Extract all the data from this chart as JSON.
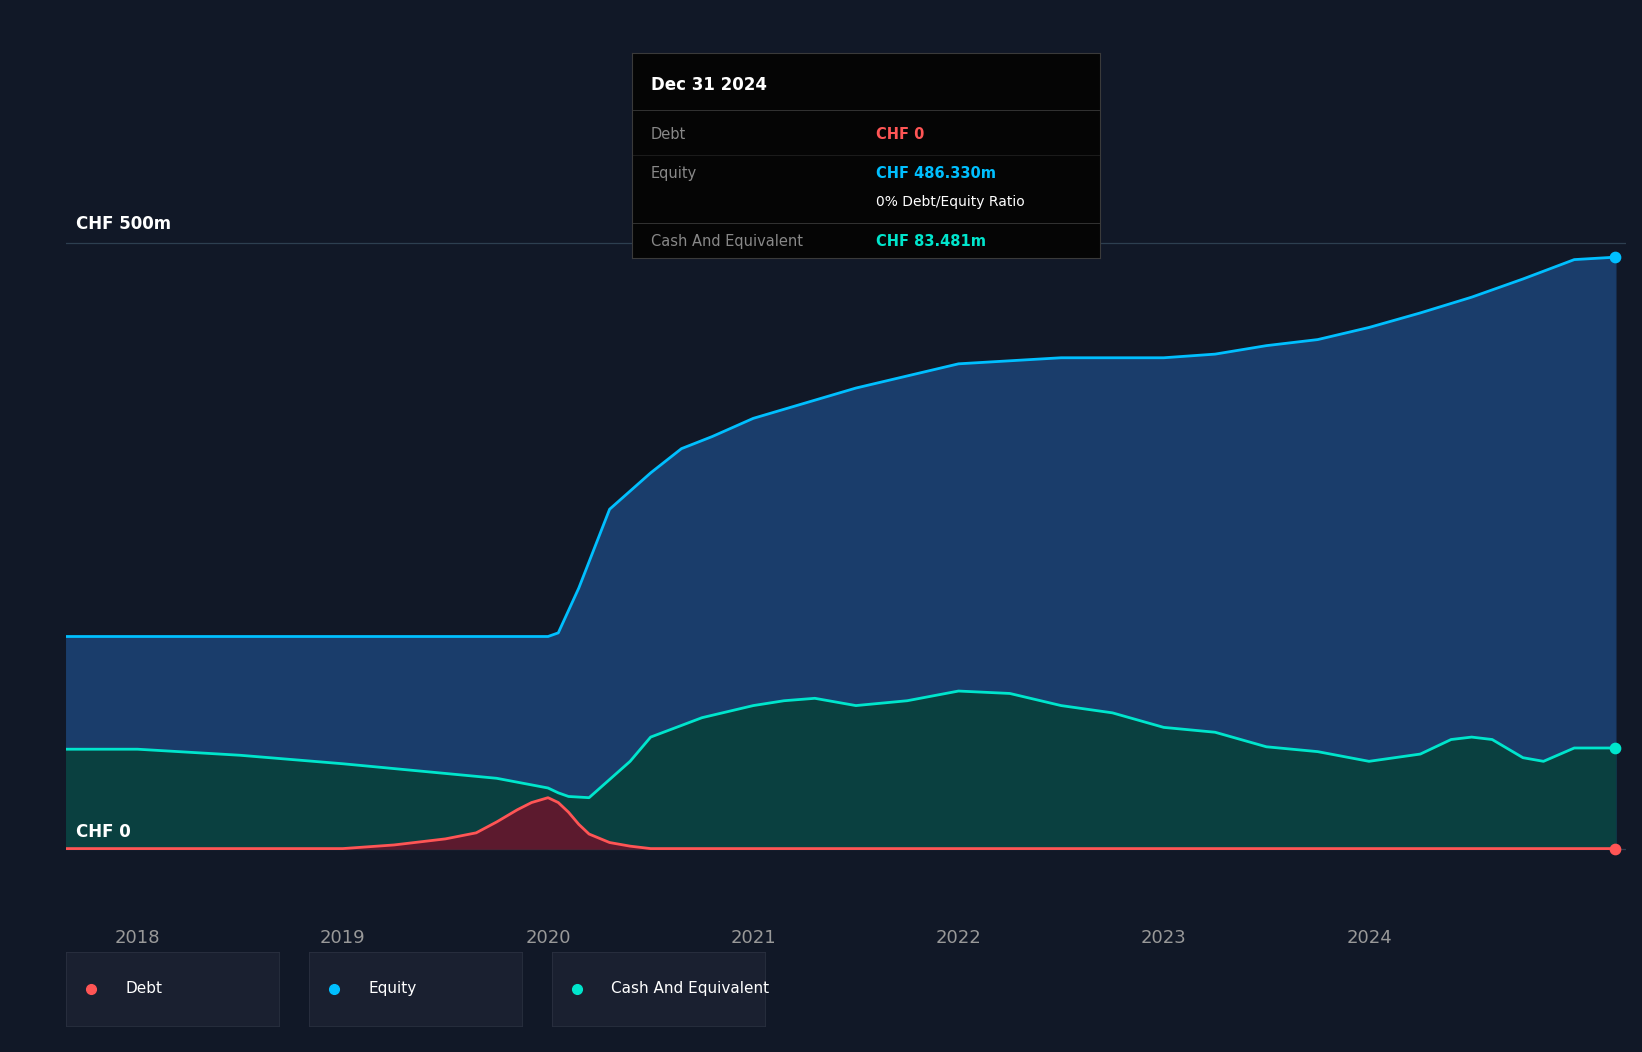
{
  "bg_color": "#111827",
  "plot_bg_color": "#111827",
  "grid_color": "#2d3f50",
  "y_values": [
    0,
    500
  ],
  "x_ticks": [
    2018,
    2019,
    2020,
    2021,
    2022,
    2023,
    2024
  ],
  "x_min": 2017.65,
  "x_max": 2025.25,
  "y_min": -55,
  "y_max": 570,
  "equity_color": "#00bfff",
  "equity_fill": "#1a3d6b",
  "debt_color": "#ff5555",
  "debt_fill": "#5c1a2e",
  "cash_color": "#00e5cc",
  "cash_fill": "#0a4040",
  "equity_x": [
    2017.65,
    2018.0,
    2018.25,
    2018.5,
    2018.75,
    2019.0,
    2019.25,
    2019.5,
    2019.75,
    2020.0,
    2020.05,
    2020.15,
    2020.3,
    2020.5,
    2020.65,
    2020.8,
    2021.0,
    2021.5,
    2022.0,
    2022.5,
    2023.0,
    2023.25,
    2023.5,
    2023.75,
    2024.0,
    2024.25,
    2024.5,
    2024.75,
    2025.0,
    2025.2
  ],
  "equity_y": [
    175,
    175,
    175,
    175,
    175,
    175,
    175,
    175,
    175,
    175,
    178,
    215,
    280,
    310,
    330,
    340,
    355,
    380,
    400,
    405,
    405,
    408,
    415,
    420,
    430,
    442,
    455,
    470,
    486,
    488
  ],
  "debt_x": [
    2017.65,
    2018.0,
    2018.5,
    2018.75,
    2019.0,
    2019.25,
    2019.5,
    2019.65,
    2019.75,
    2019.85,
    2019.92,
    2020.0,
    2020.05,
    2020.1,
    2020.15,
    2020.2,
    2020.3,
    2020.4,
    2020.5,
    2021.0,
    2021.5,
    2022.0,
    2025.2
  ],
  "debt_y": [
    0,
    0,
    0,
    0,
    0,
    3,
    8,
    13,
    22,
    32,
    38,
    42,
    38,
    30,
    20,
    12,
    5,
    2,
    0,
    0,
    0,
    0,
    0
  ],
  "cash_x": [
    2017.65,
    2018.0,
    2018.5,
    2019.0,
    2019.5,
    2019.75,
    2020.0,
    2020.05,
    2020.1,
    2020.2,
    2020.4,
    2020.5,
    2020.75,
    2021.0,
    2021.15,
    2021.3,
    2021.5,
    2021.75,
    2022.0,
    2022.25,
    2022.5,
    2022.75,
    2023.0,
    2023.25,
    2023.5,
    2023.75,
    2024.0,
    2024.25,
    2024.4,
    2024.5,
    2024.6,
    2024.75,
    2024.85,
    2025.0,
    2025.2
  ],
  "cash_y": [
    82,
    82,
    77,
    70,
    62,
    58,
    50,
    46,
    43,
    42,
    72,
    92,
    108,
    118,
    122,
    124,
    118,
    122,
    130,
    128,
    118,
    112,
    100,
    96,
    84,
    80,
    72,
    78,
    90,
    92,
    90,
    75,
    72,
    83,
    83
  ],
  "tooltip_date": "Dec 31 2024",
  "tooltip_debt_label": "Debt",
  "tooltip_debt_value": "CHF 0",
  "tooltip_equity_label": "Equity",
  "tooltip_equity_value": "CHF 486.330m",
  "tooltip_ratio": "0% Debt/Equity Ratio",
  "tooltip_cash_label": "Cash And Equivalent",
  "tooltip_cash_value": "CHF 83.481m",
  "legend_items": [
    {
      "label": "Debt",
      "color": "#ff5555"
    },
    {
      "label": "Equity",
      "color": "#00bfff"
    },
    {
      "label": "Cash And Equivalent",
      "color": "#00e5cc"
    }
  ]
}
